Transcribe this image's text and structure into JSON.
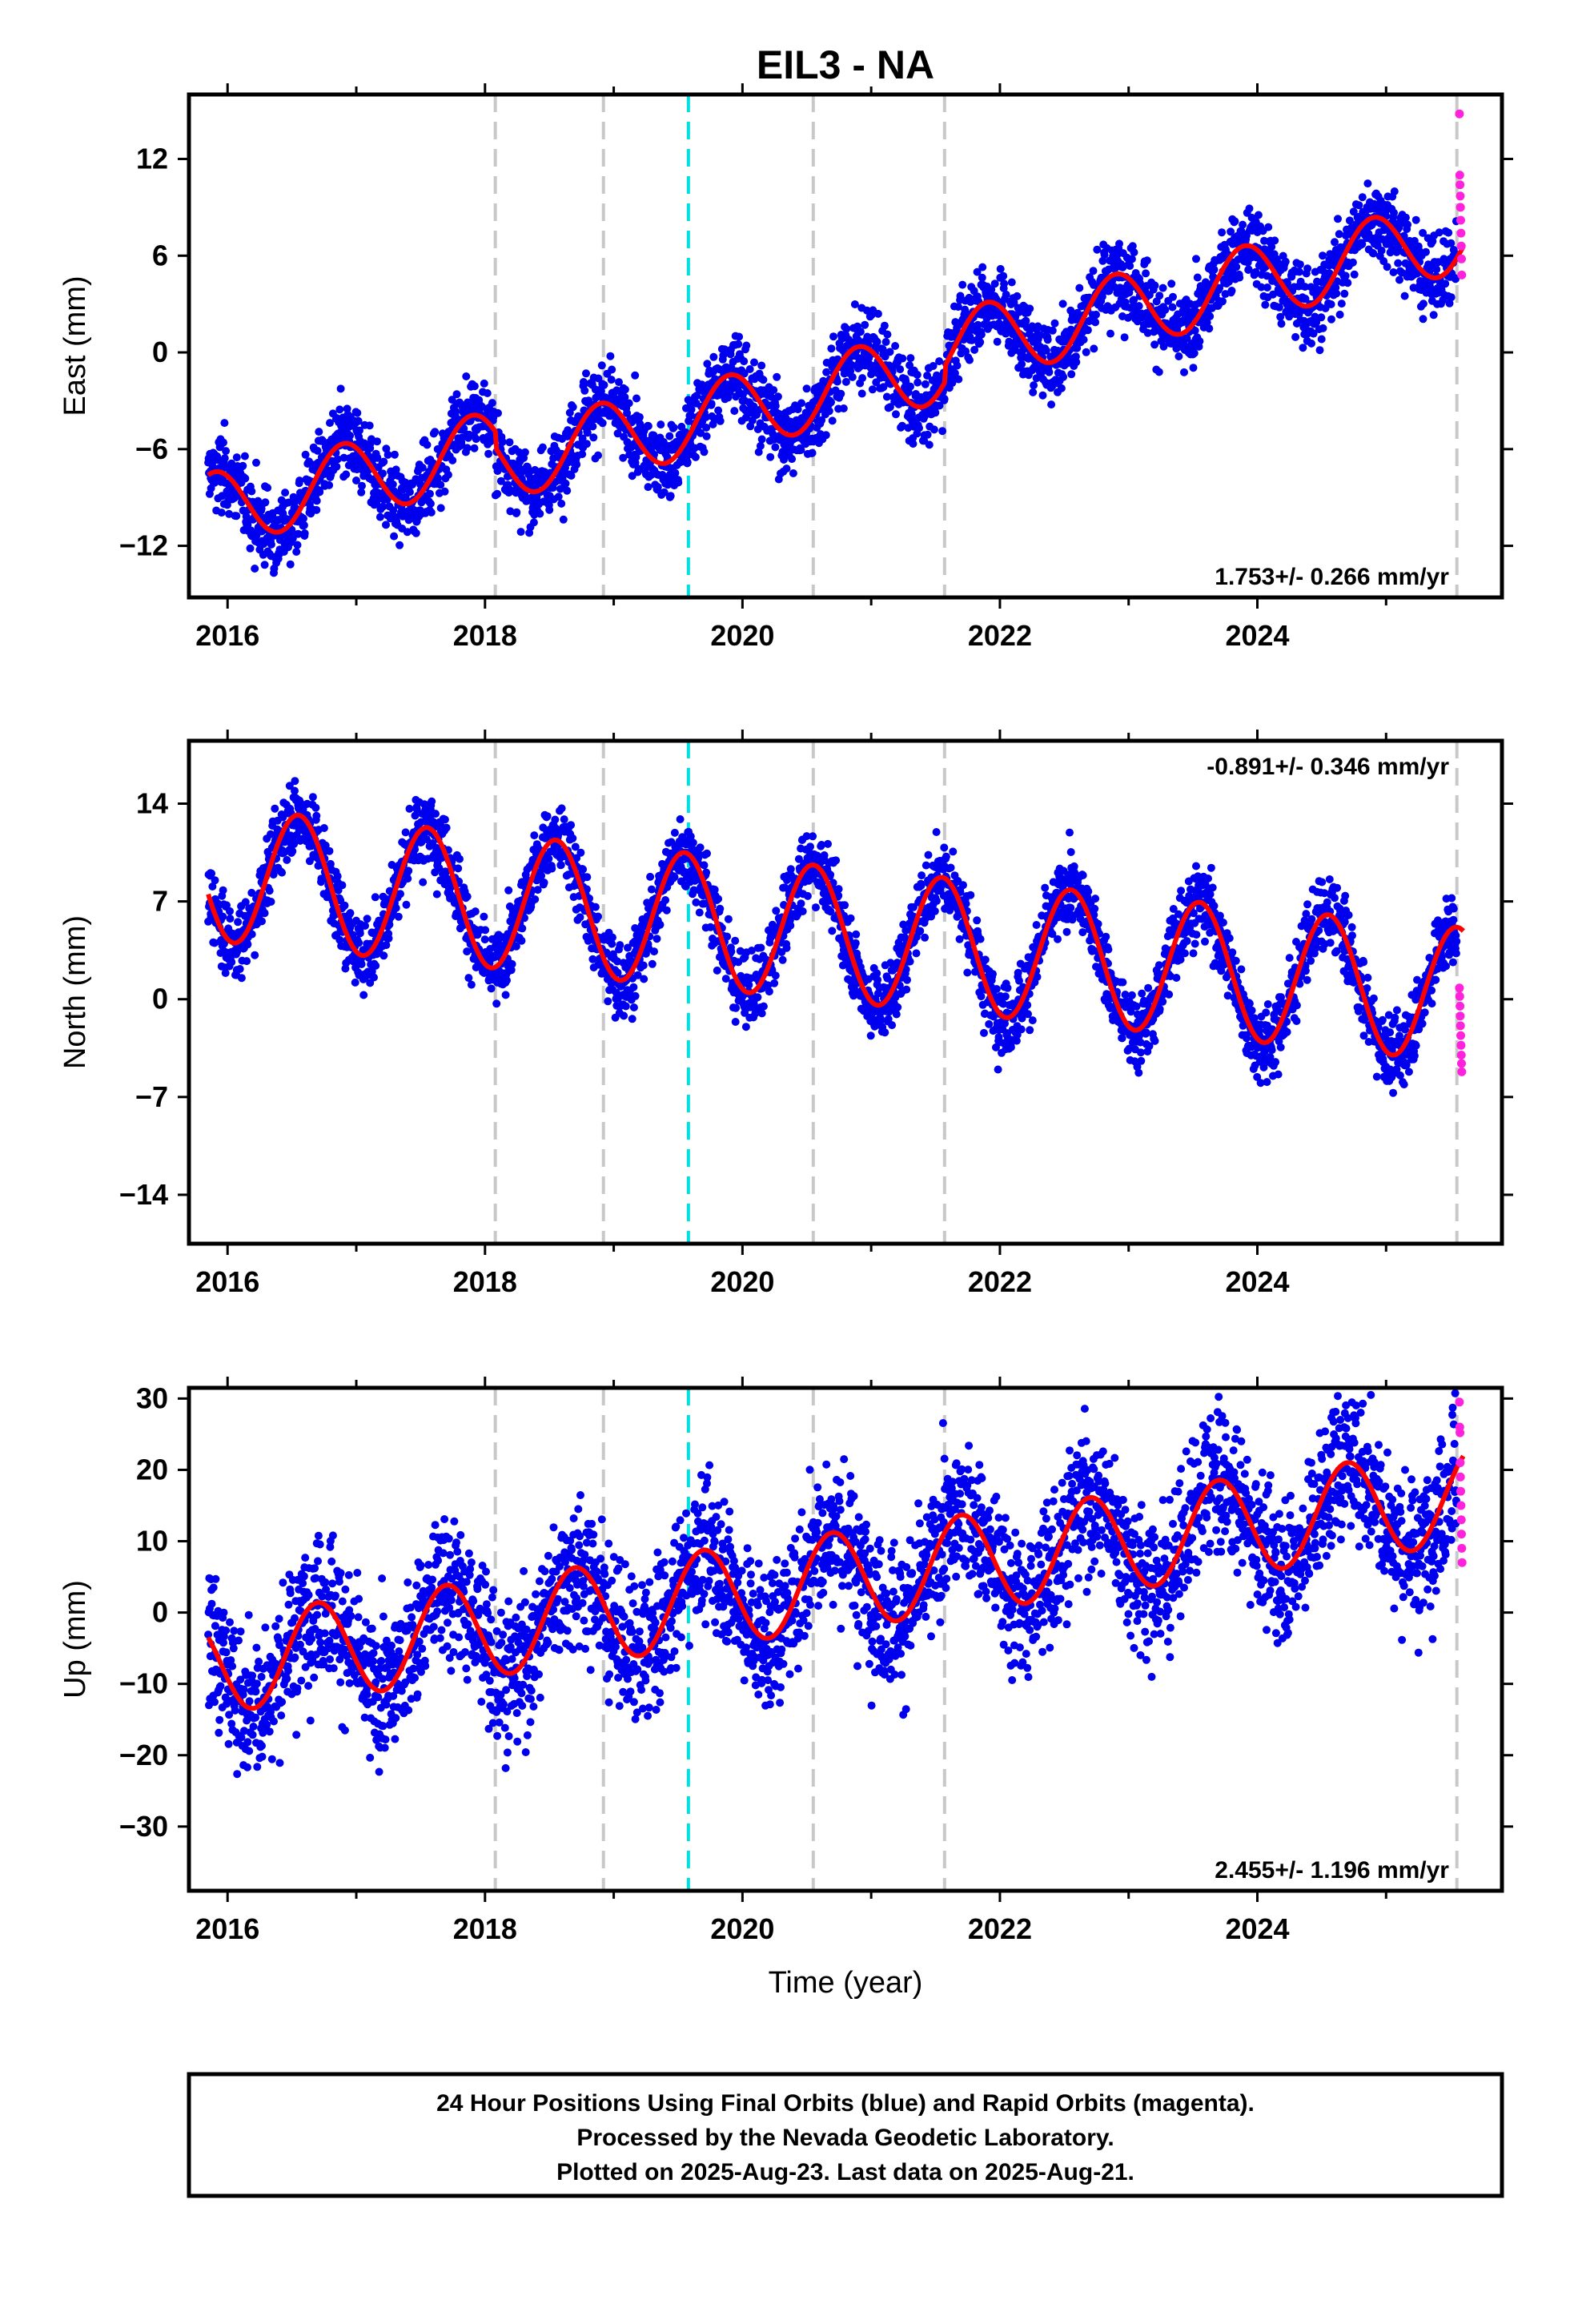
{
  "figure": {
    "title": "EIL3 - NA",
    "xlabel": "Time (year)",
    "notes": [
      "24 Hour Positions Using Final Orbits (blue) and Rapid Orbits (magenta).",
      "Processed by the Nevada Geodetic Laboratory.",
      "Plotted on 2025-Aug-23. Last data on 2025-Aug-21."
    ],
    "colors": {
      "final": "#0000ee",
      "rapid": "#ff22dd",
      "model": "#ff0000",
      "event_line": "#c8c8c8",
      "highlight_line": "#00e0e0"
    }
  },
  "chart_data": [
    {
      "type": "scatter",
      "ylabel": "East (mm)",
      "xlim": [
        2015.7,
        2025.9
      ],
      "ylim": [
        -15.2,
        16
      ],
      "yticks": [
        -12,
        -6,
        0,
        6,
        12
      ],
      "xticks": [
        2016,
        2018,
        2020,
        2022,
        2024
      ],
      "rate_label": "1.753+/- 0.266 mm/yr",
      "rate_position": "bottom-right",
      "start": 2015.85,
      "end": 2025.55,
      "model": {
        "offset": -9.8,
        "trend": 1.753,
        "amplitude": 2.3,
        "peak_year_fraction": 0.9,
        "jumps": [
          [
            2018.08,
            -1.0
          ],
          [
            2021.57,
            1.0
          ]
        ]
      },
      "noise_sd": 1.2,
      "rapid_values": [
        14.8,
        11.0,
        10.4,
        9.7,
        9.0,
        8.2,
        7.4,
        6.6,
        5.8,
        4.8
      ]
    },
    {
      "type": "scatter",
      "ylabel": "North (mm)",
      "xlim": [
        2015.7,
        2025.9
      ],
      "ylim": [
        -17.5,
        18.5
      ],
      "yticks": [
        -14,
        -7,
        0,
        7,
        14
      ],
      "xticks": [
        2016,
        2018,
        2020,
        2022,
        2024
      ],
      "rate_label": "-0.891+/- 0.346 mm/yr",
      "rate_position": "top-right",
      "start": 2015.85,
      "end": 2025.55,
      "model": {
        "offset": 9.0,
        "trend": -0.891,
        "amplitude": 4.8,
        "peak_year_fraction": 0.55,
        "jumps": []
      },
      "noise_sd": 1.3,
      "rapid_values": [
        0.8,
        0.2,
        -0.5,
        -1.2,
        -1.9,
        -2.6,
        -3.3,
        -4.0,
        -4.6,
        -5.2
      ]
    },
    {
      "type": "scatter",
      "ylabel": "Up (mm)",
      "xlim": [
        2015.7,
        2025.9
      ],
      "ylim": [
        -39,
        31.5
      ],
      "yticks": [
        -30,
        -20,
        -10,
        0,
        10,
        20,
        30
      ],
      "xticks": [
        2016,
        2018,
        2020,
        2022,
        2024
      ],
      "rate_label": "2.455+/- 1.196 mm/yr",
      "rate_position": "bottom-right",
      "start": 2015.85,
      "end": 2025.55,
      "model": {
        "offset": -7.5,
        "trend": 2.455,
        "amplitude": 6.8,
        "peak_year_fraction": 0.7,
        "jumps": []
      },
      "noise_sd": 5.0,
      "rapid_values": [
        29.5,
        26.0,
        25.2,
        21.0,
        19.0,
        17.0,
        15.0,
        13.0,
        11.0,
        9.0,
        7.0
      ]
    }
  ],
  "event_lines": [
    2018.08,
    2018.92,
    2020.55,
    2021.57,
    2025.55
  ],
  "highlight_lines": [
    2019.58
  ]
}
